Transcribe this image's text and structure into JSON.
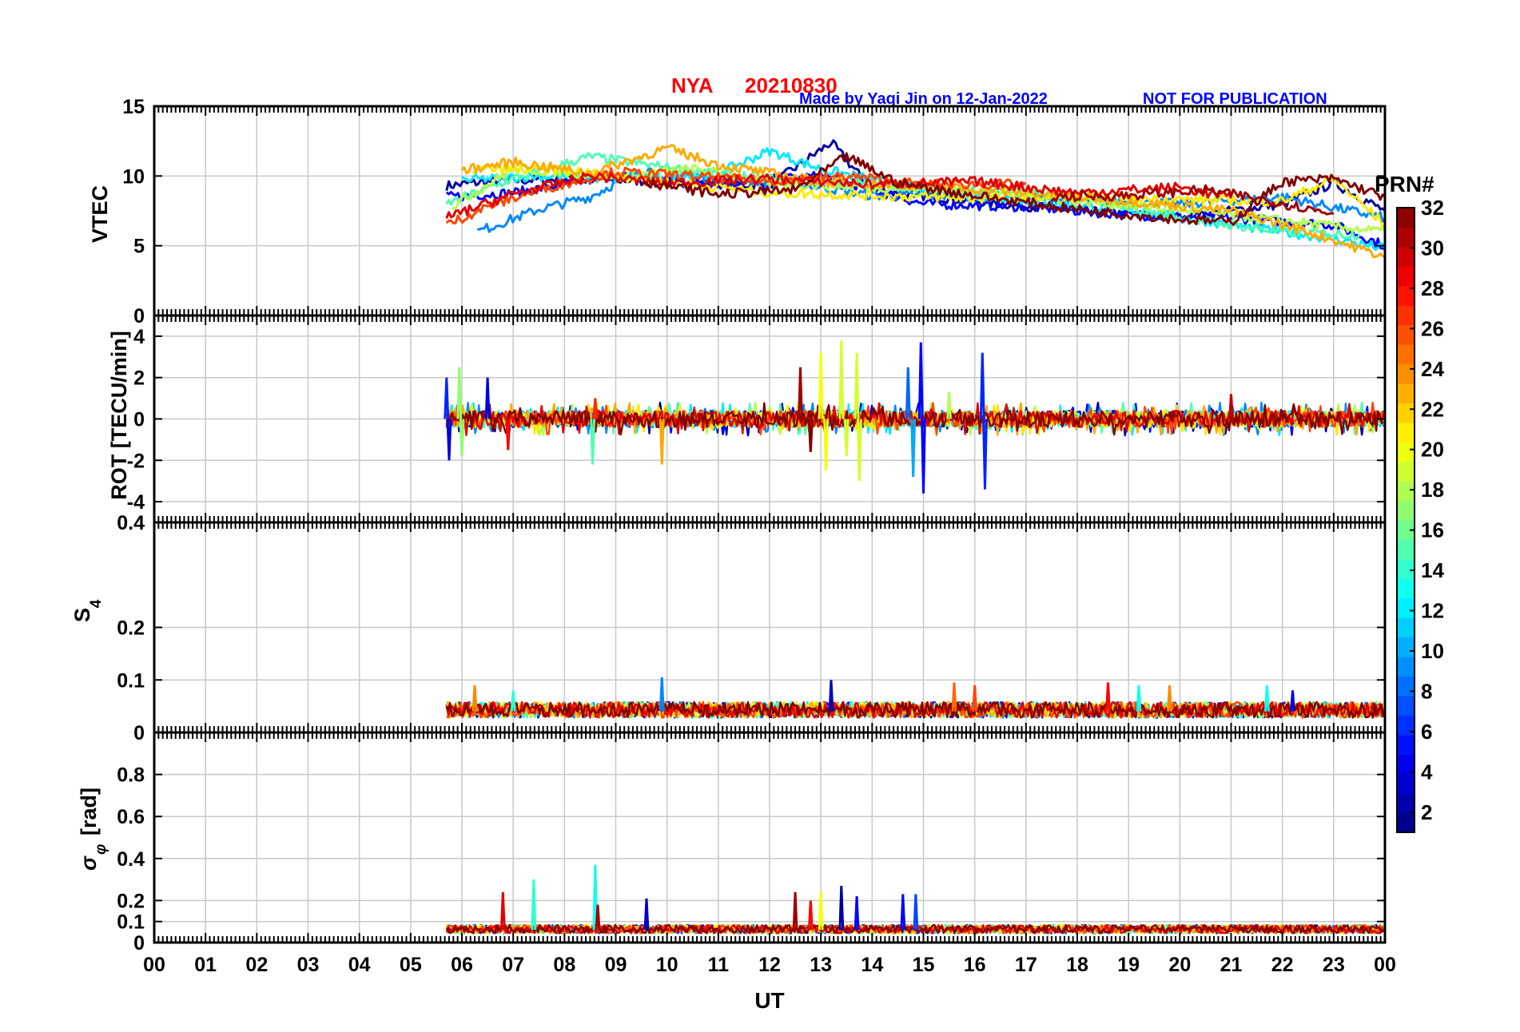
{
  "header": {
    "station": "NYA",
    "date": "20210830",
    "credit": "Made by Yaqi Jin on 12-Jan-2022",
    "notice": "NOT FOR PUBLICATION"
  },
  "colors": {
    "title_red": "#ff0000",
    "credit_blue": "#0000ff",
    "grid": "#c8c8c8",
    "axis": "#000000"
  },
  "x_axis": {
    "label": "UT",
    "ticks": [
      "00",
      "01",
      "02",
      "03",
      "04",
      "05",
      "06",
      "07",
      "08",
      "09",
      "10",
      "11",
      "12",
      "13",
      "14",
      "15",
      "16",
      "17",
      "18",
      "19",
      "20",
      "21",
      "22",
      "23",
      "00"
    ],
    "range": [
      0,
      24
    ]
  },
  "colorbar": {
    "label": "PRN#",
    "ticks": [
      "2",
      "4",
      "6",
      "8",
      "10",
      "12",
      "14",
      "16",
      "18",
      "20",
      "22",
      "24",
      "26",
      "28",
      "30",
      "32"
    ],
    "range": [
      1,
      32
    ],
    "colormap": "jet"
  },
  "chart_data": [
    {
      "type": "line",
      "panel": "vtec",
      "ylabel": "VTEC",
      "ylim": [
        0,
        15
      ],
      "yticks": [
        "0",
        "5",
        "10",
        "15"
      ],
      "grid": true,
      "x_units": "UT hour",
      "data_start_ut": 5.7,
      "series": [
        {
          "prn": 2,
          "values": [
            [
              5.7,
              9.3
            ],
            [
              6.5,
              9.6
            ],
            [
              8,
              9.8
            ],
            [
              10,
              9.6
            ],
            [
              12,
              9.3
            ],
            [
              13.2,
              12.4
            ],
            [
              14,
              9
            ],
            [
              16,
              8.2
            ],
            [
              18,
              7.5
            ],
            [
              20,
              7
            ],
            [
              22,
              8
            ],
            [
              23,
              9.5
            ],
            [
              24,
              7.5
            ]
          ]
        },
        {
          "prn": 5,
          "values": [
            [
              5.7,
              8.5
            ],
            [
              7,
              8.8
            ],
            [
              9,
              10
            ],
            [
              11,
              9.5
            ],
            [
              13,
              10
            ],
            [
              15,
              8
            ],
            [
              17,
              7.8
            ],
            [
              19,
              7.2
            ],
            [
              21,
              7
            ],
            [
              23,
              6.5
            ],
            [
              24,
              5
            ]
          ]
        },
        {
          "prn": 9,
          "values": [
            [
              6.3,
              6
            ],
            [
              7.5,
              7.6
            ],
            [
              8.5,
              8.5
            ],
            [
              9.5,
              10.5
            ],
            [
              11,
              9.8
            ],
            [
              12.5,
              9.5
            ],
            [
              14,
              8.6
            ],
            [
              16,
              8.6
            ],
            [
              18,
              8.3
            ],
            [
              20,
              8
            ],
            [
              22,
              8.5
            ],
            [
              24,
              7
            ]
          ]
        },
        {
          "prn": 12,
          "values": [
            [
              6,
              9.7
            ],
            [
              7.5,
              10
            ],
            [
              9,
              9.8
            ],
            [
              11,
              10.2
            ],
            [
              12,
              11.8
            ],
            [
              13,
              10.5
            ],
            [
              15,
              9
            ],
            [
              17,
              8.2
            ],
            [
              19,
              7.6
            ],
            [
              21,
              6.5
            ],
            [
              23,
              5.5
            ],
            [
              24,
              4.8
            ]
          ]
        },
        {
          "prn": 15,
          "values": [
            [
              5.7,
              8
            ],
            [
              7,
              9.8
            ],
            [
              8.5,
              11.4
            ],
            [
              10,
              10.6
            ],
            [
              12,
              9.8
            ],
            [
              14,
              9.4
            ],
            [
              16,
              9
            ],
            [
              18,
              8.5
            ],
            [
              20,
              7
            ],
            [
              22,
              6
            ],
            [
              23.5,
              5.8
            ]
          ]
        },
        {
          "prn": 18,
          "values": [
            [
              5.8,
              7.8
            ],
            [
              7,
              10.5
            ],
            [
              9,
              10
            ],
            [
              10.5,
              10.5
            ],
            [
              12,
              9.5
            ],
            [
              14,
              9.2
            ],
            [
              16,
              9
            ],
            [
              18,
              8.2
            ],
            [
              20,
              7.6
            ],
            [
              22,
              6.8
            ],
            [
              24,
              6
            ]
          ]
        },
        {
          "prn": 21,
          "values": [
            [
              6.2,
              10.5
            ],
            [
              8,
              10.4
            ],
            [
              10,
              9.6
            ],
            [
              12,
              8.8
            ],
            [
              14,
              8.6
            ],
            [
              16,
              8.4
            ],
            [
              18,
              8.5
            ],
            [
              20,
              8.3
            ],
            [
              22,
              8.2
            ],
            [
              23,
              9.8
            ],
            [
              24,
              6.5
            ]
          ]
        },
        {
          "prn": 23,
          "values": [
            [
              6,
              10.4
            ],
            [
              7,
              11
            ],
            [
              8.5,
              10.2
            ],
            [
              10,
              12
            ],
            [
              11,
              10.8
            ],
            [
              13,
              9.6
            ],
            [
              15,
              9.3
            ],
            [
              17,
              8.8
            ],
            [
              19,
              8.2
            ],
            [
              21,
              7.5
            ],
            [
              22.5,
              6
            ],
            [
              24,
              4.2
            ]
          ]
        },
        {
          "prn": 26,
          "values": [
            [
              5.7,
              6.5
            ],
            [
              6.5,
              7.8
            ],
            [
              7.5,
              9
            ],
            [
              9,
              10.3
            ],
            [
              10.5,
              10
            ],
            [
              12,
              9.6
            ],
            [
              13.5,
              10
            ],
            [
              15,
              9.4
            ],
            [
              17,
              9.4
            ]
          ]
        },
        {
          "prn": 29,
          "values": [
            [
              5.7,
              7
            ],
            [
              7,
              8.7
            ],
            [
              8.5,
              10
            ],
            [
              10,
              9.5
            ],
            [
              12,
              9.8
            ],
            [
              14,
              9.4
            ],
            [
              16,
              9.6
            ],
            [
              18,
              8.8
            ],
            [
              20,
              9.2
            ],
            [
              21,
              8.4
            ]
          ]
        },
        {
          "prn": 31,
          "values": [
            [
              17.5,
              8.5
            ],
            [
              19,
              8.6
            ],
            [
              20.5,
              9
            ],
            [
              21.5,
              8.4
            ],
            [
              23,
              7.3
            ]
          ]
        },
        {
          "prn": 32,
          "values": [
            [
              9.5,
              9.6
            ],
            [
              11,
              8.7
            ],
            [
              12.5,
              9
            ],
            [
              13.5,
              11.4
            ],
            [
              14.5,
              9.5
            ],
            [
              16,
              8.6
            ],
            [
              18,
              7.6
            ],
            [
              20,
              6.9
            ],
            [
              21,
              6.7
            ],
            [
              22,
              9.6
            ],
            [
              23,
              9.8
            ],
            [
              24,
              8.5
            ]
          ]
        }
      ]
    },
    {
      "type": "line",
      "panel": "rot",
      "ylabel": "ROT [TECU/min]",
      "ylim": [
        -5,
        5
      ],
      "yticks": [
        "-4",
        "-2",
        "0",
        "2",
        "4"
      ],
      "grid": true,
      "x_units": "UT hour",
      "data_start_ut": 5.7,
      "background_amplitude": 0.4,
      "spikes": [
        {
          "x": 5.7,
          "y": 2.0,
          "prn": 6
        },
        {
          "x": 5.75,
          "y": -2.0,
          "prn": 4
        },
        {
          "x": 5.95,
          "y": 2.5,
          "prn": 17
        },
        {
          "x": 6.0,
          "y": -1.8,
          "prn": 17
        },
        {
          "x": 6.5,
          "y": 2.0,
          "prn": 4
        },
        {
          "x": 6.9,
          "y": -1.5,
          "prn": 28
        },
        {
          "x": 8.55,
          "y": -2.2,
          "prn": 15
        },
        {
          "x": 8.6,
          "y": 1.0,
          "prn": 27
        },
        {
          "x": 9.9,
          "y": -2.2,
          "prn": 23
        },
        {
          "x": 12.6,
          "y": 2.5,
          "prn": 31
        },
        {
          "x": 12.8,
          "y": -1.6,
          "prn": 32
        },
        {
          "x": 13.0,
          "y": 3.2,
          "prn": 20
        },
        {
          "x": 13.1,
          "y": -2.5,
          "prn": 20
        },
        {
          "x": 13.4,
          "y": 3.8,
          "prn": 19
        },
        {
          "x": 13.5,
          "y": -1.8,
          "prn": 19
        },
        {
          "x": 13.7,
          "y": 3.2,
          "prn": 19
        },
        {
          "x": 13.75,
          "y": -3.0,
          "prn": 19
        },
        {
          "x": 14.7,
          "y": 2.5,
          "prn": 8
        },
        {
          "x": 14.8,
          "y": -2.8,
          "prn": 10
        },
        {
          "x": 14.95,
          "y": 3.7,
          "prn": 5
        },
        {
          "x": 15.0,
          "y": -3.6,
          "prn": 5
        },
        {
          "x": 15.5,
          "y": 1.3,
          "prn": 18
        },
        {
          "x": 16.15,
          "y": 3.2,
          "prn": 6
        },
        {
          "x": 16.2,
          "y": -3.4,
          "prn": 6
        },
        {
          "x": 21.0,
          "y": 1.2,
          "prn": 30
        }
      ]
    },
    {
      "type": "line",
      "panel": "s4",
      "ylabel": "S4",
      "ylim": [
        0,
        0.4
      ],
      "yticks": [
        "0",
        "0.1",
        "0.2",
        "0.4"
      ],
      "grid": true,
      "x_units": "UT hour",
      "data_start_ut": 5.7,
      "baseline": 0.04,
      "spikes": [
        {
          "x": 6.25,
          "y": 0.09,
          "prn": 24
        },
        {
          "x": 7.0,
          "y": 0.08,
          "prn": 14
        },
        {
          "x": 9.9,
          "y": 0.105,
          "prn": 9
        },
        {
          "x": 13.2,
          "y": 0.1,
          "prn": 3
        },
        {
          "x": 15.6,
          "y": 0.095,
          "prn": 25
        },
        {
          "x": 16.0,
          "y": 0.09,
          "prn": 26
        },
        {
          "x": 18.6,
          "y": 0.095,
          "prn": 28
        },
        {
          "x": 19.2,
          "y": 0.09,
          "prn": 13
        },
        {
          "x": 19.8,
          "y": 0.09,
          "prn": 24
        },
        {
          "x": 21.7,
          "y": 0.09,
          "prn": 13
        },
        {
          "x": 22.2,
          "y": 0.08,
          "prn": 4
        }
      ]
    },
    {
      "type": "line",
      "panel": "sigma_phi",
      "ylabel": "σ φ [rad]",
      "ylim": [
        0,
        1
      ],
      "yticks": [
        "0",
        "0.1",
        "0.2",
        "0.4",
        "0.6",
        "0.8"
      ],
      "grid": true,
      "x_units": "UT hour",
      "data_start_ut": 5.7,
      "baseline": 0.06,
      "spikes": [
        {
          "x": 6.8,
          "y": 0.24,
          "prn": 29
        },
        {
          "x": 7.4,
          "y": 0.3,
          "prn": 14
        },
        {
          "x": 8.6,
          "y": 0.37,
          "prn": 13
        },
        {
          "x": 8.65,
          "y": 0.18,
          "prn": 31
        },
        {
          "x": 9.6,
          "y": 0.21,
          "prn": 3
        },
        {
          "x": 12.5,
          "y": 0.24,
          "prn": 31
        },
        {
          "x": 12.8,
          "y": 0.2,
          "prn": 28
        },
        {
          "x": 13.0,
          "y": 0.24,
          "prn": 20
        },
        {
          "x": 13.4,
          "y": 0.27,
          "prn": 2
        },
        {
          "x": 13.7,
          "y": 0.22,
          "prn": 5
        },
        {
          "x": 14.6,
          "y": 0.23,
          "prn": 5
        },
        {
          "x": 14.85,
          "y": 0.23,
          "prn": 7
        }
      ]
    }
  ]
}
